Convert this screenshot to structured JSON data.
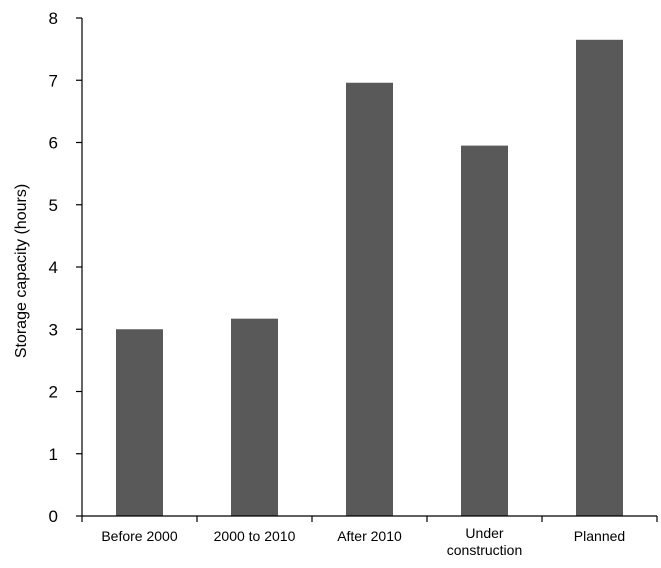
{
  "chart_data": {
    "type": "bar",
    "categories": [
      [
        "Before 2000"
      ],
      [
        "2000 to 2010"
      ],
      [
        "After 2010"
      ],
      [
        "Under",
        "construction"
      ],
      [
        "Planned"
      ]
    ],
    "values": [
      3.0,
      3.17,
      6.96,
      5.95,
      7.65
    ],
    "title": "",
    "xlabel": "",
    "ylabel": "Storage capacity (hours)",
    "ylim": [
      0,
      8
    ],
    "yticks": [
      0,
      1,
      2,
      3,
      4,
      5,
      6,
      7,
      8
    ],
    "grid": false,
    "legend": "none",
    "colors": {
      "bar": "#595959"
    }
  }
}
